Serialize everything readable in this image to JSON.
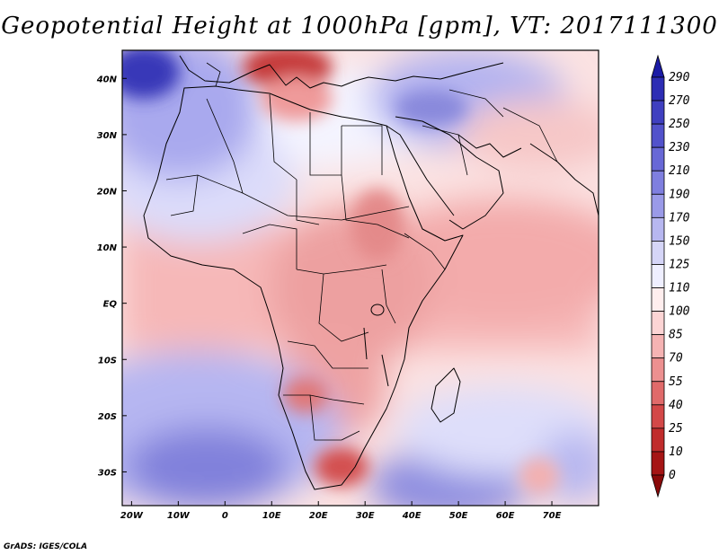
{
  "title": "Geopotential Height at 1000hPa [gpm], VT: 2017111300",
  "credit": "GrADS: IGES/COLA",
  "map": {
    "lon_range": [
      -22,
      80
    ],
    "lat_range": [
      -36,
      45
    ],
    "lon_ticks": [
      {
        "value": -20,
        "label": "20W"
      },
      {
        "value": -10,
        "label": "10W"
      },
      {
        "value": 0,
        "label": "0"
      },
      {
        "value": 10,
        "label": "10E"
      },
      {
        "value": 20,
        "label": "20E"
      },
      {
        "value": 30,
        "label": "30E"
      },
      {
        "value": 40,
        "label": "40E"
      },
      {
        "value": 50,
        "label": "50E"
      },
      {
        "value": 60,
        "label": "60E"
      },
      {
        "value": 70,
        "label": "70E"
      }
    ],
    "lat_ticks": [
      {
        "value": 40,
        "label": "40N"
      },
      {
        "value": 30,
        "label": "30N"
      },
      {
        "value": 20,
        "label": "20N"
      },
      {
        "value": 10,
        "label": "10N"
      },
      {
        "value": 0,
        "label": "EQ"
      },
      {
        "value": -10,
        "label": "10S"
      },
      {
        "value": -20,
        "label": "20S"
      },
      {
        "value": -30,
        "label": "30S"
      }
    ],
    "shaded_regions": [
      {
        "region": "central-africa",
        "level": 70,
        "lon": [
          5,
          40
        ],
        "lat": [
          -5,
          15
        ]
      },
      {
        "region": "northern-balkans",
        "level": 40,
        "lon": [
          10,
          30
        ],
        "lat": [
          40,
          45
        ]
      },
      {
        "region": "southern-africa",
        "level": 40,
        "lon": [
          22,
          32
        ],
        "lat": [
          -32,
          -22
        ]
      },
      {
        "region": "north-atlantic",
        "level": 210,
        "lon": [
          -22,
          -12
        ],
        "lat": [
          38,
          45
        ]
      },
      {
        "region": "south-atlantic",
        "level": 190,
        "lon": [
          -15,
          10
        ],
        "lat": [
          -36,
          -25
        ]
      },
      {
        "region": "south-indian-ocean",
        "level": 190,
        "lon": [
          30,
          60
        ],
        "lat": [
          -36,
          -30
        ]
      },
      {
        "region": "middle-east",
        "level": 170,
        "lon": [
          35,
          55
        ],
        "lat": [
          30,
          40
        ]
      }
    ]
  },
  "colorbar": {
    "levels": [
      "290",
      "270",
      "250",
      "230",
      "210",
      "190",
      "170",
      "150",
      "125",
      "110",
      "100",
      "85",
      "70",
      "55",
      "40",
      "25",
      "10",
      "0"
    ],
    "colors": [
      "#1b1ba6",
      "#2d2db4",
      "#3f3fc0",
      "#5252cb",
      "#6868d6",
      "#7f7fdf",
      "#9a9ae8",
      "#b7b7f0",
      "#d5d5f7",
      "#efefff",
      "#ffeeee",
      "#fcd4d4",
      "#f5b3b3",
      "#ec9090",
      "#e06a6a",
      "#d34848",
      "#c02c2c",
      "#a51515",
      "#8a0a0a"
    ]
  }
}
